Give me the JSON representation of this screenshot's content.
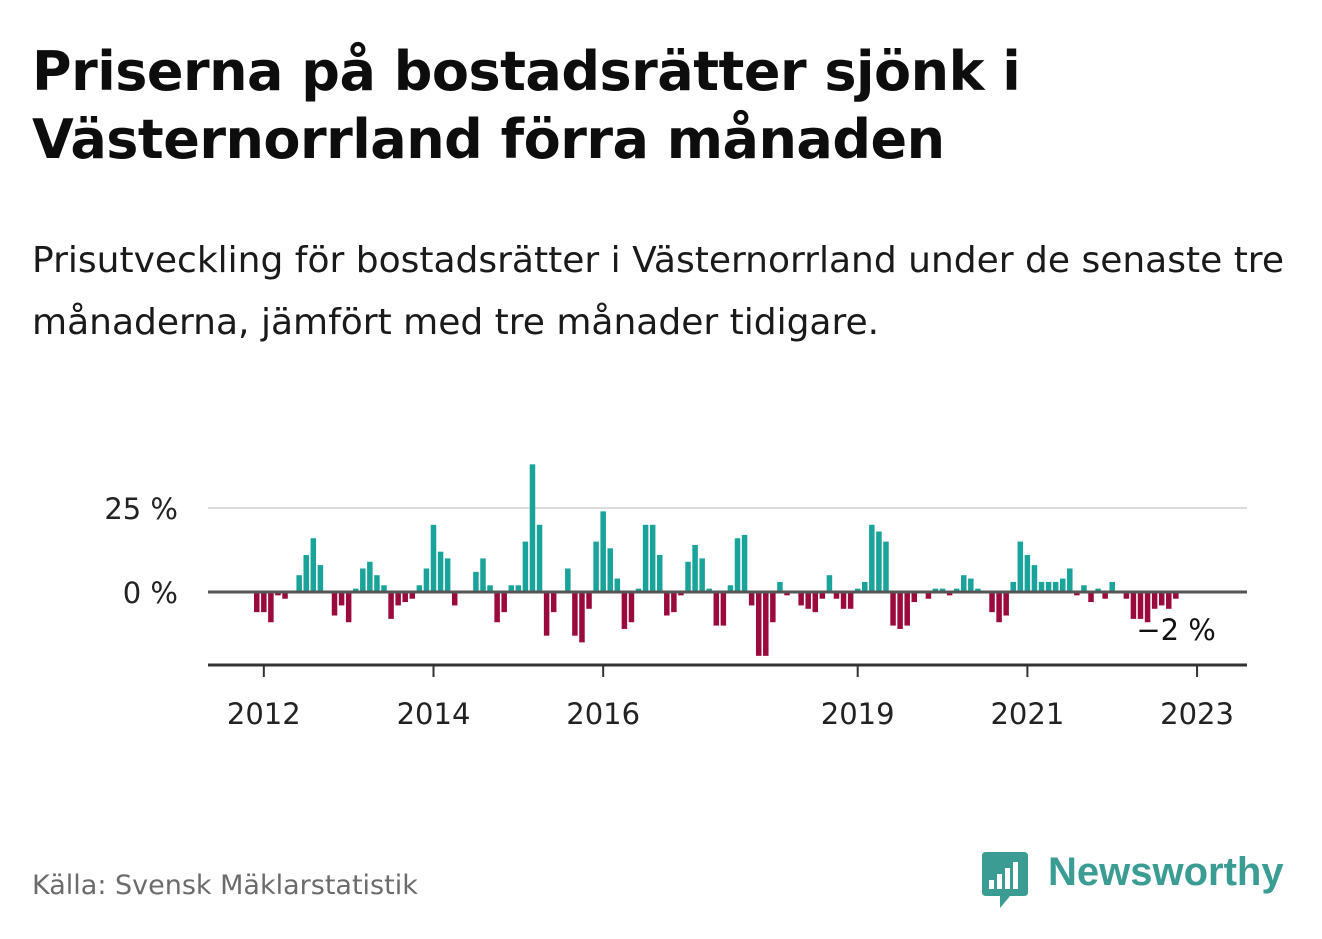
{
  "title": "Priserna på bostadsrätter sjönk i Västernorrland förra månaden",
  "subtitle": "Prisutveckling för bostadsrätter i Västernorrland under de senaste tre månaderna, jämfört med tre månader tidigare.",
  "source": "Källa: Svensk Mäklarstatistik",
  "logo_text": "Newsworthy",
  "colors": {
    "positive": "#1aa39a",
    "negative": "#9b0a3c",
    "logo": "#3a9c92"
  },
  "chart_data": {
    "type": "bar",
    "x_start": "2011-12",
    "frequency": "monthly",
    "ylim": [
      -22,
      38
    ],
    "y_ticks": [
      {
        "value": 25,
        "label": "25 %"
      },
      {
        "value": 0,
        "label": "0 %"
      }
    ],
    "x_ticks": [
      {
        "month": "2012-01",
        "label": "2012"
      },
      {
        "month": "2014-01",
        "label": "2014"
      },
      {
        "month": "2016-01",
        "label": "2016"
      },
      {
        "month": "2019-01",
        "label": "2019"
      },
      {
        "month": "2021-01",
        "label": "2021"
      },
      {
        "month": "2023-01",
        "label": "2023"
      }
    ],
    "end_label": "−2 %",
    "values": [
      -6,
      -6,
      -9,
      -1,
      -2,
      0,
      5,
      11,
      16,
      8,
      0,
      -7,
      -4,
      -9,
      1,
      7,
      9,
      5,
      2,
      -8,
      -4,
      -3,
      -2,
      2,
      7,
      20,
      12,
      10,
      -4,
      0,
      0,
      6,
      10,
      2,
      -9,
      -6,
      2,
      2,
      15,
      38,
      20,
      -13,
      -6,
      0,
      7,
      -13,
      -15,
      -5,
      15,
      24,
      13,
      4,
      -11,
      -9,
      1,
      20,
      20,
      11,
      -7,
      -6,
      -1,
      9,
      14,
      10,
      1,
      -10,
      -10,
      2,
      16,
      17,
      -4,
      -19,
      -19,
      -9,
      3,
      -1,
      0,
      -4,
      -5,
      -6,
      -2,
      5,
      -2,
      -5,
      -5,
      1,
      3,
      20,
      18,
      15,
      -10,
      -11,
      -10,
      -3,
      0,
      -2,
      1,
      1,
      -1,
      1,
      5,
      4,
      1,
      0,
      -6,
      -9,
      -7,
      3,
      15,
      11,
      8,
      3,
      3,
      3,
      4,
      7,
      -1,
      2,
      -3,
      1,
      -2,
      3,
      0,
      -2,
      -8,
      -8,
      -9,
      -5,
      -4,
      -5,
      -2
    ]
  }
}
